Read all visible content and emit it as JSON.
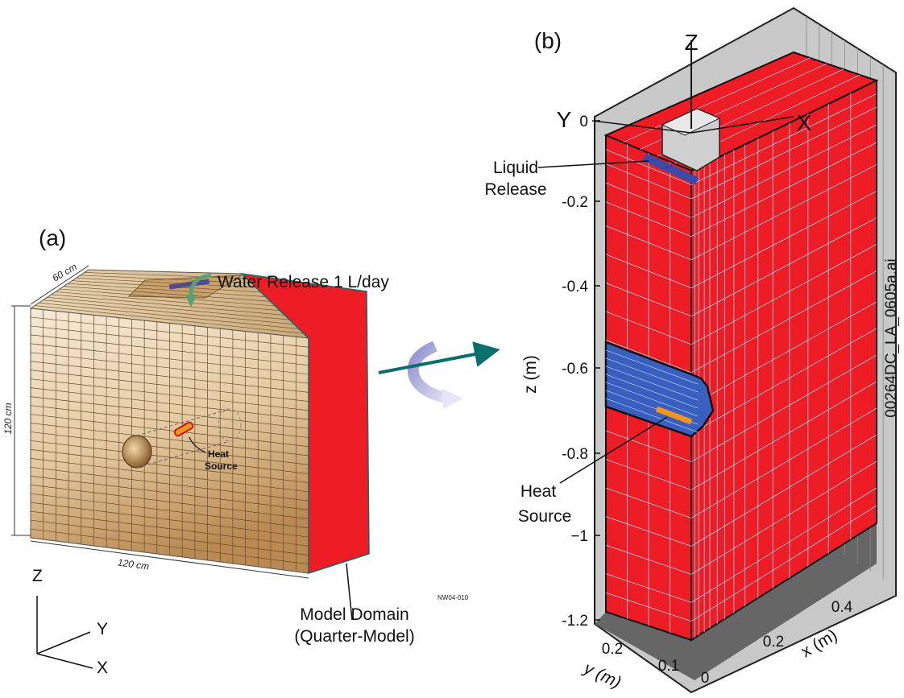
{
  "panel_a": {
    "label": "(a)",
    "dim_top": "60 cm",
    "dim_side": "120 cm",
    "dim_bottom": "120 cm",
    "water_release": "Water Release 1 L/day",
    "heat_source": [
      "Heat",
      "Source"
    ],
    "model_domain": [
      "Model Domain",
      "(Quarter-Model)"
    ],
    "figure_code": "NW04-010",
    "axes": {
      "z": "Z",
      "y": "Y",
      "x": "X"
    }
  },
  "panel_b": {
    "label": "(b)",
    "axes": {
      "z": "Z",
      "y": "Y",
      "x": "X"
    },
    "liquid_release": [
      "Liquid",
      "Release"
    ],
    "heat_source": [
      "Heat",
      "Source"
    ],
    "z_axis_title": "z (m)",
    "z_ticks": [
      "0",
      "-0.2",
      "-0.4",
      "-0.6",
      "-0.8",
      "−1",
      "-1.2"
    ],
    "x_axis_title": "x (m)",
    "x_ticks": [
      "0",
      "0.2",
      "0.4"
    ],
    "y_axis_title": "y (m)",
    "y_ticks": [
      "0.2",
      "0.1"
    ],
    "file_code": "00264DC_LA_0605a.ai"
  }
}
